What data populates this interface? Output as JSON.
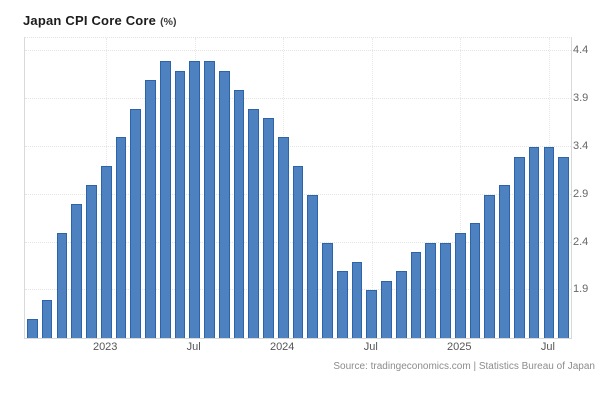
{
  "title": {
    "text": "Japan CPI Core Core",
    "unit": "(%)"
  },
  "source": "Source: tradingeconomics.com | Statistics Bureau of Japan",
  "colors": {
    "bar_fill": "#4e81c0",
    "bar_border": "#2d63a8",
    "grid": "#e4e4e4",
    "axis_text": "#666666",
    "source_text": "#8c8c8c"
  },
  "chart_data": {
    "type": "bar",
    "title": "Japan CPI Core Core (%)",
    "x": [
      "Aug 2022",
      "Sep 2022",
      "Oct 2022",
      "Nov 2022",
      "Dec 2022",
      "Jan 2023",
      "Feb 2023",
      "Mar 2023",
      "Apr 2023",
      "May 2023",
      "Jun 2023",
      "Jul 2023",
      "Aug 2023",
      "Sep 2023",
      "Oct 2023",
      "Nov 2023",
      "Dec 2023",
      "Jan 2024",
      "Feb 2024",
      "Mar 2024",
      "Apr 2024",
      "May 2024",
      "Jun 2024",
      "Jul 2024",
      "Aug 2024",
      "Sep 2024",
      "Oct 2024",
      "Nov 2024",
      "Dec 2024",
      "Jan 2025",
      "Feb 2025",
      "Mar 2025",
      "Apr 2025",
      "May 2025",
      "Jun 2025",
      "Jul 2025",
      "Aug 2025"
    ],
    "values": [
      1.6,
      1.8,
      2.5,
      2.8,
      3.0,
      3.2,
      3.5,
      3.8,
      4.1,
      4.3,
      4.2,
      4.3,
      4.3,
      4.2,
      4.0,
      3.8,
      3.7,
      3.5,
      3.2,
      2.9,
      2.4,
      2.1,
      2.2,
      1.9,
      2.0,
      2.1,
      2.3,
      2.4,
      2.4,
      2.5,
      2.6,
      2.9,
      3.0,
      3.3,
      3.4,
      3.4,
      3.3
    ],
    "xlabel": "",
    "ylabel": "",
    "ylim": [
      1.4,
      4.54
    ],
    "yticks": [
      1.9,
      2.4,
      2.9,
      3.4,
      3.9,
      4.4
    ],
    "ytick_side": "right",
    "xticks": [
      {
        "index": 5,
        "label": "2023"
      },
      {
        "index": 11,
        "label": "Jul"
      },
      {
        "index": 17,
        "label": "2024"
      },
      {
        "index": 23,
        "label": "Jul"
      },
      {
        "index": 29,
        "label": "2025"
      },
      {
        "index": 35,
        "label": "Jul"
      }
    ],
    "grid": true,
    "legend": false
  }
}
